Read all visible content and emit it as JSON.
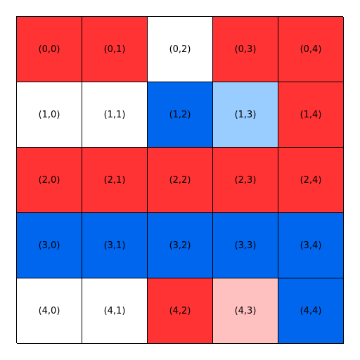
{
  "colors": {
    "white": "#ffffff",
    "red": "#ff3333",
    "blue": "#0066ee",
    "light_blue": "#99ccff",
    "light_red": "#ffc0c0"
  },
  "grid": {
    "rows": [
      {
        "cells": [
          {
            "label": "(0,0)",
            "color": "red"
          },
          {
            "label": "(0,1)",
            "color": "red"
          },
          {
            "label": "(0,2)",
            "color": "white"
          },
          {
            "label": "(0,3)",
            "color": "red"
          },
          {
            "label": "(0,4)",
            "color": "red"
          }
        ]
      },
      {
        "cells": [
          {
            "label": "(1,0)",
            "color": "white"
          },
          {
            "label": "(1,1)",
            "color": "white"
          },
          {
            "label": "(1,2)",
            "color": "blue"
          },
          {
            "label": "(1,3)",
            "color": "light_blue"
          },
          {
            "label": "(1,4)",
            "color": "red"
          }
        ]
      },
      {
        "cells": [
          {
            "label": "(2,0)",
            "color": "red"
          },
          {
            "label": "(2,1)",
            "color": "red"
          },
          {
            "label": "(2,2)",
            "color": "red"
          },
          {
            "label": "(2,3)",
            "color": "red"
          },
          {
            "label": "(2,4)",
            "color": "red"
          }
        ]
      },
      {
        "cells": [
          {
            "label": "(3,0)",
            "color": "blue"
          },
          {
            "label": "(3,1)",
            "color": "blue"
          },
          {
            "label": "(3,2)",
            "color": "blue"
          },
          {
            "label": "(3,3)",
            "color": "blue"
          },
          {
            "label": "(3,4)",
            "color": "blue"
          }
        ]
      },
      {
        "cells": [
          {
            "label": "(4,0)",
            "color": "white"
          },
          {
            "label": "(4,1)",
            "color": "white"
          },
          {
            "label": "(4,2)",
            "color": "red"
          },
          {
            "label": "(4,3)",
            "color": "light_red"
          },
          {
            "label": "(4,4)",
            "color": "blue"
          }
        ]
      }
    ]
  }
}
